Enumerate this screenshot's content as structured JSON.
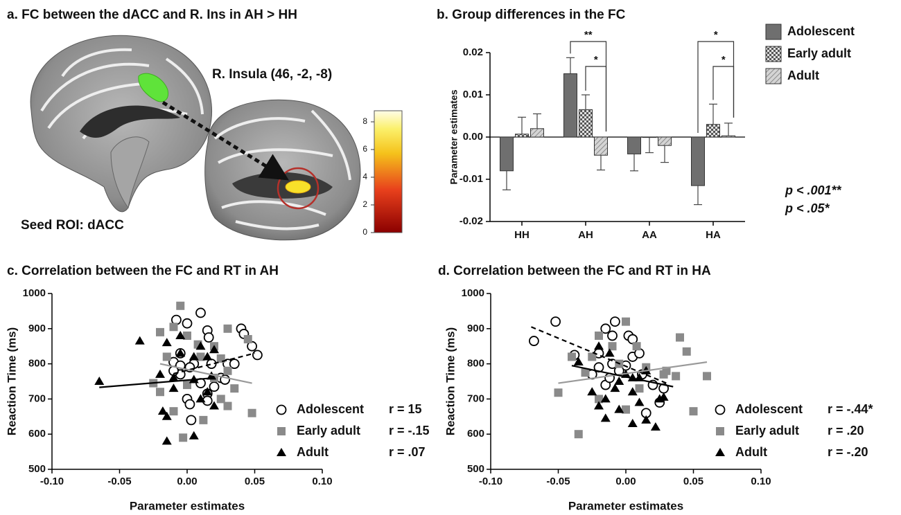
{
  "panel_a": {
    "title": "a. FC between the dACC and R. Ins in AH > HH",
    "roi_label": "R. Insula (46, -2, -8)",
    "seed_label": "Seed ROI: dACC",
    "colorbar": {
      "lim": [
        0,
        8.8
      ],
      "ticks": [
        0,
        2,
        4,
        6,
        8
      ]
    }
  },
  "chart_data": [
    {
      "type": "bar",
      "title": "b. Group differences in the FC",
      "y_label": "Parameter estimates",
      "categories": [
        "HH",
        "AH",
        "AA",
        "HA"
      ],
      "series": [
        {
          "name": "Adolescent",
          "color": "#6f6f6f",
          "fill": "solid",
          "values": [
            -0.008,
            0.015,
            -0.004,
            -0.0115
          ],
          "errors": [
            0.0045,
            0.0038,
            0.004,
            0.0045
          ]
        },
        {
          "name": "Early adult",
          "color": "#8a8a8a",
          "fill": "checker",
          "values": [
            0.0007,
            0.0065,
            -0.0001,
            0.003
          ],
          "errors": [
            0.004,
            0.0035,
            0.0036,
            0.0048
          ]
        },
        {
          "name": "Adult",
          "color": "#b8b8b8",
          "fill": "hatch",
          "values": [
            0.002,
            -0.0043,
            -0.002,
            0.0003
          ],
          "errors": [
            0.0035,
            0.0035,
            0.004,
            0.003
          ]
        }
      ],
      "ylim": [
        -0.02,
        0.02
      ],
      "yticks": [
        -0.02,
        -0.01,
        {
          "value": 0,
          "label": "0.00"
        },
        0.01,
        0.02
      ],
      "annotations": [
        "**",
        "*",
        "*",
        "*"
      ],
      "notes": [
        "p < .001**",
        "p < .05*"
      ]
    },
    {
      "type": "scatter",
      "title": "c. Correlation between the FC and RT in AH",
      "x_label": "Parameter estimates",
      "y_label": "Reaction Time (ms)",
      "xlim": [
        -0.1,
        0.1
      ],
      "ylim": [
        500,
        1000
      ],
      "xticks": [
        {
          "value": -0.1,
          "label": "-0.10"
        },
        -0.05,
        {
          "value": 0,
          "label": "0.00"
        },
        0.05,
        {
          "value": 0.1,
          "label": "0.10"
        }
      ],
      "yticks": [
        500,
        600,
        700,
        800,
        900,
        1000
      ],
      "series": [
        {
          "name": "Adolescent",
          "r": "r = 15",
          "marker": "circle",
          "color": "#000000",
          "x": [
            -0.008,
            0.0,
            0.01,
            0.015,
            0.04,
            0.042,
            0.048,
            0.052,
            0.016,
            -0.005,
            -0.01,
            0.005,
            0.018,
            0.03,
            0.035,
            -0.005,
            0.002,
            0.025,
            0.028,
            -0.005,
            0.01,
            0.02,
            0.015,
            0.0,
            0.002,
            0.003,
            0.015,
            -0.01
          ],
          "values": [
            925,
            915,
            945,
            895,
            900,
            885,
            850,
            825,
            875,
            830,
            805,
            800,
            800,
            800,
            800,
            795,
            790,
            760,
            755,
            770,
            745,
            735,
            715,
            700,
            685,
            640,
            695,
            780
          ],
          "fit": {
            "style": "dashed",
            "color": "#000000",
            "x": [
              -0.01,
              0.05
            ],
            "y": [
              772,
              830
            ]
          }
        },
        {
          "name": "Early adult",
          "r": "r = -.15",
          "marker": "square",
          "color": "#8a8a8a",
          "x": [
            -0.005,
            -0.01,
            -0.02,
            0.008,
            0.0,
            0.02,
            0.03,
            0.045,
            0.01,
            -0.015,
            0.025,
            0.03,
            -0.025,
            -0.02,
            0.02,
            0.035,
            0.03,
            0.012,
            -0.003,
            0.048,
            -0.01,
            0.025,
            0.0
          ],
          "values": [
            965,
            905,
            890,
            855,
            880,
            850,
            900,
            870,
            820,
            820,
            815,
            780,
            745,
            720,
            760,
            730,
            680,
            640,
            590,
            660,
            665,
            700,
            740
          ],
          "fit": {
            "style": "solid",
            "color": "#999999",
            "x": [
              -0.02,
              0.048
            ],
            "y": [
              800,
              745
            ]
          }
        },
        {
          "name": "Adult",
          "r": "r = .07",
          "marker": "triangle",
          "color": "#000000",
          "x": [
            -0.065,
            -0.035,
            -0.015,
            -0.005,
            0.01,
            0.02,
            -0.02,
            -0.01,
            0.005,
            0.015,
            -0.018,
            -0.015,
            -0.015,
            0.005,
            0.01,
            0.015,
            0.02,
            0.005,
            -0.01,
            0.018,
            -0.005
          ],
          "values": [
            750,
            865,
            860,
            880,
            850,
            840,
            770,
            760,
            820,
            820,
            665,
            650,
            580,
            595,
            700,
            720,
            680,
            755,
            730,
            765,
            830
          ],
          "fit": {
            "style": "solid",
            "color": "#000000",
            "x": [
              -0.065,
              0.02
            ],
            "y": [
              733,
              760
            ]
          }
        }
      ]
    },
    {
      "type": "scatter",
      "title": "d. Correlation between the FC and RT in HA",
      "x_label": "Parameter estimates",
      "y_label": "Reaction Time (ms)",
      "xlim": [
        -0.1,
        0.1
      ],
      "ylim": [
        500,
        1000
      ],
      "xticks": [
        {
          "value": -0.1,
          "label": "-0.10"
        },
        -0.05,
        {
          "value": 0,
          "label": "0.00"
        },
        0.05,
        {
          "value": 0.1,
          "label": "0.10"
        }
      ],
      "yticks": [
        500,
        600,
        700,
        800,
        900,
        1000
      ],
      "series": [
        {
          "name": "Adolescent",
          "r": "r = -.44*",
          "marker": "circle",
          "color": "#000000",
          "x": [
            -0.068,
            -0.052,
            -0.038,
            -0.02,
            -0.015,
            -0.008,
            -0.01,
            0.002,
            0.005,
            -0.02,
            -0.025,
            -0.01,
            0.0,
            0.005,
            0.01,
            -0.015,
            0.012,
            0.02,
            0.028,
            0.025,
            0.015,
            -0.005,
            -0.012
          ],
          "values": [
            865,
            920,
            825,
            830,
            900,
            920,
            880,
            880,
            870,
            790,
            770,
            800,
            795,
            820,
            830,
            740,
            770,
            740,
            730,
            690,
            660,
            780,
            760
          ],
          "fit": {
            "style": "dashed",
            "color": "#000000",
            "x": [
              -0.07,
              0.03
            ],
            "y": [
              905,
              745
            ]
          }
        },
        {
          "name": "Early adult",
          "r": "r = .20",
          "marker": "square",
          "color": "#8a8a8a",
          "x": [
            -0.05,
            -0.04,
            -0.035,
            -0.03,
            -0.02,
            -0.01,
            0.0,
            0.008,
            -0.005,
            0.015,
            0.03,
            0.037,
            0.04,
            0.045,
            0.05,
            0.06,
            -0.02,
            0.0,
            0.01,
            0.028,
            -0.025
          ],
          "values": [
            718,
            820,
            600,
            775,
            880,
            850,
            920,
            850,
            800,
            790,
            780,
            765,
            875,
            835,
            665,
            765,
            700,
            670,
            730,
            770,
            820
          ],
          "fit": {
            "style": "solid",
            "color": "#999999",
            "x": [
              -0.05,
              0.06
            ],
            "y": [
              745,
              805
            ]
          }
        },
        {
          "name": "Adult",
          "r": "r = -.20",
          "marker": "triangle",
          "color": "#000000",
          "x": [
            -0.035,
            -0.02,
            -0.012,
            0.0,
            0.005,
            0.015,
            0.025,
            0.028,
            -0.025,
            -0.015,
            -0.005,
            0.005,
            0.01,
            0.015,
            0.022,
            0.005,
            -0.005,
            -0.015,
            -0.02,
            0.01,
            -0.008
          ],
          "values": [
            805,
            850,
            830,
            770,
            760,
            780,
            700,
            705,
            720,
            700,
            750,
            720,
            690,
            640,
            620,
            630,
            670,
            645,
            680,
            760,
            730
          ],
          "fit": {
            "style": "solid",
            "color": "#000000",
            "x": [
              -0.04,
              0.035
            ],
            "y": [
              795,
              735
            ]
          }
        }
      ]
    }
  ]
}
